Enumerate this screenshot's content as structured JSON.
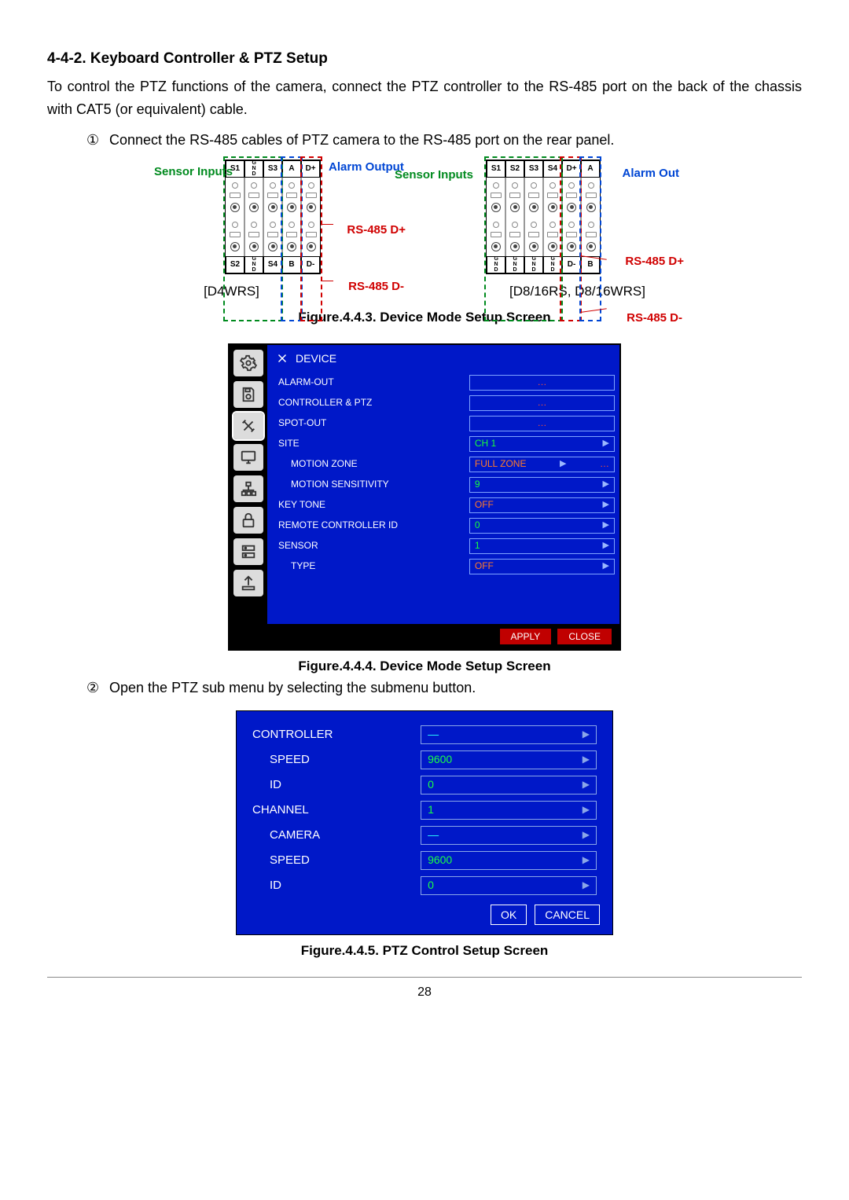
{
  "heading": "4-4-2. Keyboard Controller & PTZ Setup",
  "intro": "To control the PTZ functions of the camera, connect the PTZ controller to the RS-485 port on the back of the chassis with CAT5 (or equivalent) cable.",
  "step1_num": "①",
  "step1": "Connect the RS-485 cables of PTZ camera to the RS-485 port on the rear panel.",
  "step2_num": "②",
  "step2": "Open the PTZ sub menu by selecting the submenu button.",
  "diagram_left": {
    "top_terms": [
      "S1",
      "G\nN\nD",
      "S3",
      "A",
      "D+"
    ],
    "bottom_terms": [
      "S2",
      "G\nN\nD",
      "S4",
      "B",
      "D-"
    ],
    "labels": {
      "sensor_inputs": "Sensor Inputs",
      "alarm_output": "Alarm Output",
      "rs485_dp": "RS-485 D+",
      "rs485_dm": "RS-485 D-"
    },
    "colors": {
      "sensor": "#008a1e",
      "alarm": "#0046d4",
      "rs485": "#d00000"
    },
    "model": "[D4WRS]"
  },
  "diagram_right": {
    "top_terms": [
      "S1",
      "S2",
      "S3",
      "S4",
      "D+",
      "A"
    ],
    "bottom_terms": [
      "G\nN\nD",
      "G\nN\nD",
      "G\nN\nD",
      "G\nN\nD",
      "D-",
      "B"
    ],
    "labels": {
      "sensor_inputs": "Sensor Inputs",
      "alarm_out": "Alarm Out",
      "rs485_dp": "RS-485 D+",
      "rs485_dm": "RS-485 D-"
    },
    "colors": {
      "sensor": "#008a1e",
      "alarm": "#0046d4",
      "rs485": "#d00000"
    },
    "model": "[D8/16RS, D8/16WRS]"
  },
  "fig443_caption": "Figure.4.4.3. Device Mode Setup Screen",
  "fig444_caption": "Figure.4.4.4. Device Mode Setup Screen",
  "fig445_caption": "Figure.4.4.5. PTZ Control Setup Screen",
  "pageNumber": "28",
  "device_screen": {
    "colors": {
      "panel_bg": "#0018c8",
      "frame": "#000000",
      "value_green": "#18ff3a",
      "value_orange": "#ff7a2a",
      "btn_red": "#c00000",
      "text": "#ffffff"
    },
    "title": "DEVICE",
    "rows": [
      {
        "label": "ALARM-OUT",
        "indent": 0,
        "value": "...",
        "style": "center"
      },
      {
        "label": "CONTROLLER & PTZ",
        "indent": 0,
        "value": "...",
        "style": "center"
      },
      {
        "label": "SPOT-OUT",
        "indent": 0,
        "value": "...",
        "style": "center"
      },
      {
        "label": "SITE",
        "indent": 0,
        "value": "CH 1",
        "style": "spin"
      },
      {
        "label": "MOTION ZONE",
        "indent": 1,
        "value": "FULL ZONE",
        "style": "spin_orange_extra"
      },
      {
        "label": "MOTION SENSITIVITY",
        "indent": 1,
        "value": "9",
        "style": "spin"
      },
      {
        "label": "KEY TONE",
        "indent": 0,
        "value": "OFF",
        "style": "spin_orange"
      },
      {
        "label": "REMOTE CONTROLLER ID",
        "indent": 0,
        "value": "0",
        "style": "spin"
      },
      {
        "label": "SENSOR",
        "indent": 0,
        "value": "1",
        "style": "spin"
      },
      {
        "label": "TYPE",
        "indent": 1,
        "value": "OFF",
        "style": "spin_orange"
      }
    ],
    "buttons": {
      "apply": "APPLY",
      "close": "CLOSE"
    }
  },
  "ptz_screen": {
    "colors": {
      "panel_bg": "#0018c8",
      "value_green": "#1cff46",
      "text": "#ffffff"
    },
    "rows": [
      {
        "label": "CONTROLLER",
        "indent": 0,
        "value": "—",
        "dash": true
      },
      {
        "label": "SPEED",
        "indent": 1,
        "value": "9600"
      },
      {
        "label": "ID",
        "indent": 1,
        "value": "0"
      },
      {
        "label": "CHANNEL",
        "indent": 0,
        "value": "1"
      },
      {
        "label": "CAMERA",
        "indent": 1,
        "value": "—",
        "dash": true
      },
      {
        "label": "SPEED",
        "indent": 1,
        "value": "9600"
      },
      {
        "label": "ID",
        "indent": 1,
        "value": "0"
      }
    ],
    "buttons": {
      "ok": "OK",
      "cancel": "CANCEL"
    }
  }
}
